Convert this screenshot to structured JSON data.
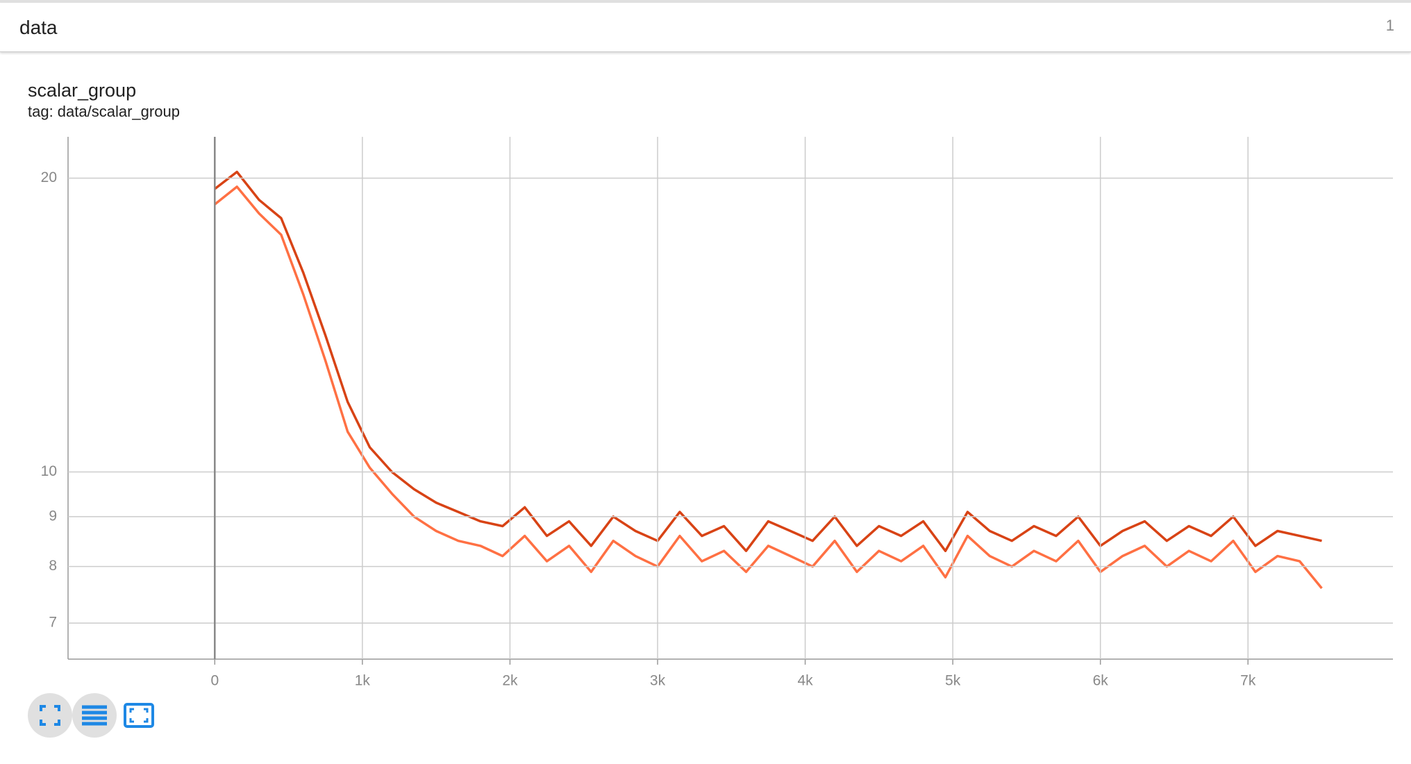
{
  "header": {
    "title": "data",
    "count": "1"
  },
  "chart_data": {
    "type": "line",
    "title": "scalar_group",
    "subtitle": "tag: data/scalar_group",
    "x": [
      0,
      150,
      300,
      450,
      600,
      750,
      900,
      1050,
      1200,
      1350,
      1500,
      1650,
      1800,
      1950,
      2100,
      2250,
      2400,
      2550,
      2700,
      2850,
      3000,
      3150,
      3300,
      3450,
      3600,
      3750,
      3900,
      4050,
      4200,
      4350,
      4500,
      4650,
      4800,
      4950,
      5100,
      5250,
      5400,
      5550,
      5700,
      5850,
      6000,
      6150,
      6300,
      6450,
      6600,
      6750,
      6900,
      7050,
      7200,
      7350,
      7500
    ],
    "series": [
      {
        "color": "#d84315",
        "values": [
          19.5,
          20.3,
          19.0,
          18.2,
          16.0,
          13.8,
          11.8,
          10.6,
          10.0,
          9.6,
          9.3,
          9.1,
          8.9,
          8.8,
          9.2,
          8.6,
          8.9,
          8.4,
          9.0,
          8.7,
          8.5,
          9.1,
          8.6,
          8.8,
          8.3,
          8.9,
          8.7,
          8.5,
          9.0,
          8.4,
          8.8,
          8.6,
          8.9,
          8.3,
          9.1,
          8.7,
          8.5,
          8.8,
          8.6,
          9.0,
          8.4,
          8.7,
          8.9,
          8.5,
          8.8,
          8.6,
          9.0,
          8.4,
          8.7,
          8.6,
          8.5
        ]
      },
      {
        "color": "#ff7043",
        "values": [
          18.8,
          19.6,
          18.4,
          17.5,
          15.2,
          13.0,
          11.0,
          10.1,
          9.5,
          9.0,
          8.7,
          8.5,
          8.4,
          8.2,
          8.6,
          8.1,
          8.4,
          7.9,
          8.5,
          8.2,
          8.0,
          8.6,
          8.1,
          8.3,
          7.9,
          8.4,
          8.2,
          8.0,
          8.5,
          7.9,
          8.3,
          8.1,
          8.4,
          7.8,
          8.6,
          8.2,
          8.0,
          8.3,
          8.1,
          8.5,
          7.9,
          8.2,
          8.4,
          8.0,
          8.3,
          8.1,
          8.5,
          7.9,
          8.2,
          8.1,
          7.6
        ]
      }
    ],
    "xlim": [
      -994,
      7982
    ],
    "ylim": [
      6.43,
      22.05
    ],
    "log_y": true,
    "grid": true,
    "xticks": [
      {
        "value": 0,
        "label": "0"
      },
      {
        "value": 1000,
        "label": "1k"
      },
      {
        "value": 2000,
        "label": "2k"
      },
      {
        "value": 3000,
        "label": "3k"
      },
      {
        "value": 4000,
        "label": "4k"
      },
      {
        "value": 5000,
        "label": "5k"
      },
      {
        "value": 6000,
        "label": "6k"
      },
      {
        "value": 7000,
        "label": "7k"
      }
    ],
    "yticks": [
      7,
      8,
      9,
      10,
      20
    ]
  }
}
